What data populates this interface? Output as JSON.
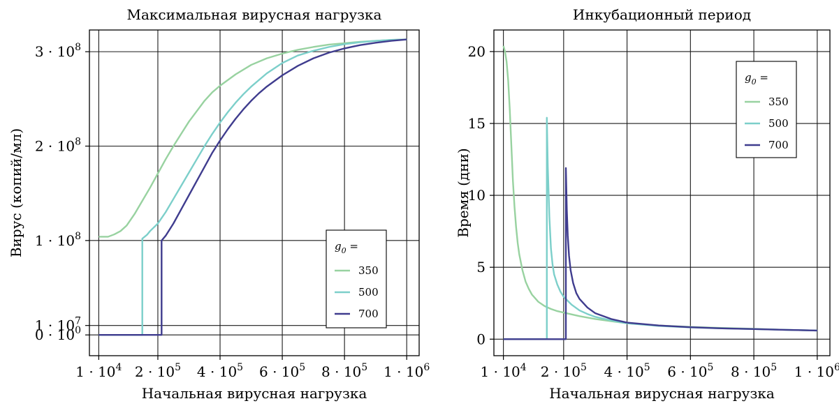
{
  "chart_data": [
    {
      "type": "line",
      "title": "Максимальная вирусная нагрузка",
      "xlabel": "Начальная вирусная нагрузка",
      "ylabel": "Вирус (копий/мл)",
      "xlim": [
        -20000,
        1040000
      ],
      "ylim": [
        -22000000,
        323000000
      ],
      "grid": true,
      "x_ticks": [
        {
          "value": 10000,
          "base": "1 · 10",
          "exp": "4"
        },
        {
          "value": 200000,
          "base": "2 · 10",
          "exp": "5"
        },
        {
          "value": 400000,
          "base": "4 · 10",
          "exp": "5"
        },
        {
          "value": 600000,
          "base": "6 · 10",
          "exp": "5"
        },
        {
          "value": 800000,
          "base": "8 · 10",
          "exp": "5"
        },
        {
          "value": 1000000,
          "base": "1 · 10",
          "exp": "6"
        }
      ],
      "y_ticks": [
        {
          "value": 0,
          "base": "0 · 10",
          "exp": "0"
        },
        {
          "value": 10000000,
          "base": "1 · 10",
          "exp": "7"
        },
        {
          "value": 100000000,
          "base": "1 · 10",
          "exp": "8"
        },
        {
          "value": 200000000,
          "base": "2 · 10",
          "exp": "8"
        },
        {
          "value": 300000000,
          "base": "3 · 10",
          "exp": "8"
        }
      ],
      "legend": {
        "title_base": "g",
        "title_sub": "0",
        "title_suffix": " =",
        "placement": "bottom-right"
      },
      "series": [
        {
          "name": "350",
          "color": "#98d2a0",
          "points": [
            [
              10000,
              104000000
            ],
            [
              40000,
              104000000
            ],
            [
              60000,
              106500000
            ],
            [
              80000,
              110000000
            ],
            [
              100000,
              116000000
            ],
            [
              125000,
              128000000
            ],
            [
              150000,
              142000000
            ],
            [
              175000,
              156000000
            ],
            [
              200000,
              171000000
            ],
            [
              225000,
              186000000
            ],
            [
              250000,
              200000000
            ],
            [
              275000,
              213000000
            ],
            [
              300000,
              226000000
            ],
            [
              325000,
              237000000
            ],
            [
              350000,
              248000000
            ],
            [
              375000,
              257000000
            ],
            [
              400000,
              264000000
            ],
            [
              450000,
              276000000
            ],
            [
              500000,
              286000000
            ],
            [
              550000,
              293000000
            ],
            [
              600000,
              298000000
            ],
            [
              650000,
              302000000
            ],
            [
              700000,
              305000000
            ],
            [
              750000,
              307500000
            ],
            [
              800000,
              309000000
            ],
            [
              850000,
              310500000
            ],
            [
              900000,
              311500000
            ],
            [
              950000,
              312500000
            ],
            [
              1000000,
              313000000
            ]
          ]
        },
        {
          "name": "500",
          "color": "#7ccfca",
          "points": [
            [
              10000,
              0
            ],
            [
              150000,
              0
            ],
            [
              150000,
              102000000
            ],
            [
              165000,
              106000000
            ],
            [
              175000,
              110000000
            ],
            [
              200000,
              118000000
            ],
            [
              225000,
              130000000
            ],
            [
              250000,
              144000000
            ],
            [
              275000,
              158000000
            ],
            [
              300000,
              172000000
            ],
            [
              325000,
              186000000
            ],
            [
              350000,
              200000000
            ],
            [
              375000,
              213000000
            ],
            [
              400000,
              225000000
            ],
            [
              425000,
              236000000
            ],
            [
              450000,
              246000000
            ],
            [
              475000,
              255000000
            ],
            [
              500000,
              263000000
            ],
            [
              550000,
              277000000
            ],
            [
              600000,
              288000000
            ],
            [
              650000,
              296000000
            ],
            [
              700000,
              301000000
            ],
            [
              750000,
              305000000
            ],
            [
              800000,
              308000000
            ],
            [
              850000,
              310000000
            ],
            [
              900000,
              311500000
            ],
            [
              950000,
              312500000
            ],
            [
              1000000,
              313000000
            ]
          ]
        },
        {
          "name": "700",
          "color": "#3f3c8e",
          "points": [
            [
              10000,
              0
            ],
            [
              212000,
              0
            ],
            [
              212000,
              100000000
            ],
            [
              225000,
              105000000
            ],
            [
              250000,
              118000000
            ],
            [
              275000,
              133000000
            ],
            [
              300000,
              148000000
            ],
            [
              325000,
              163000000
            ],
            [
              350000,
              178000000
            ],
            [
              375000,
              193000000
            ],
            [
              400000,
              206000000
            ],
            [
              425000,
              218000000
            ],
            [
              450000,
              229000000
            ],
            [
              475000,
              239000000
            ],
            [
              500000,
              248000000
            ],
            [
              525000,
              256000000
            ],
            [
              550000,
              263000000
            ],
            [
              600000,
              275000000
            ],
            [
              650000,
              285000000
            ],
            [
              700000,
              293000000
            ],
            [
              750000,
              299000000
            ],
            [
              800000,
              303500000
            ],
            [
              850000,
              307000000
            ],
            [
              900000,
              309500000
            ],
            [
              950000,
              311500000
            ],
            [
              1000000,
              313000000
            ]
          ]
        }
      ]
    },
    {
      "type": "line",
      "title": "Инкубационный период",
      "xlabel": "Начальная вирусная нагрузка",
      "ylabel": "Время (дни)",
      "xlim": [
        -20000,
        1040000
      ],
      "ylim": [
        -1.15,
        21.5
      ],
      "grid": true,
      "x_ticks": [
        {
          "value": 10000,
          "base": "1 · 10",
          "exp": "4"
        },
        {
          "value": 200000,
          "base": "2 · 10",
          "exp": "5"
        },
        {
          "value": 400000,
          "base": "4 · 10",
          "exp": "5"
        },
        {
          "value": 600000,
          "base": "6 · 10",
          "exp": "5"
        },
        {
          "value": 800000,
          "base": "8 · 10",
          "exp": "5"
        },
        {
          "value": 1000000,
          "base": "1 · 10",
          "exp": "6"
        }
      ],
      "y_ticks": [
        {
          "value": 0,
          "label": "0"
        },
        {
          "value": 5,
          "label": "5"
        },
        {
          "value": 10,
          "label": "10"
        },
        {
          "value": 15,
          "label": "15"
        },
        {
          "value": 20,
          "label": "20"
        }
      ],
      "legend": {
        "title_base": "g",
        "title_sub": "0",
        "title_suffix": " =",
        "placement": "top-right"
      },
      "series": [
        {
          "name": "350",
          "color": "#98d2a0",
          "points": [
            [
              10000,
              20.4
            ],
            [
              15000,
              20.0
            ],
            [
              20000,
              19.3
            ],
            [
              25000,
              18.0
            ],
            [
              30000,
              16.0
            ],
            [
              35000,
              13.5
            ],
            [
              40000,
              11.0
            ],
            [
              45000,
              9.2
            ],
            [
              50000,
              7.8
            ],
            [
              55000,
              6.7
            ],
            [
              60000,
              5.9
            ],
            [
              70000,
              4.8
            ],
            [
              80000,
              4.0
            ],
            [
              90000,
              3.5
            ],
            [
              100000,
              3.1
            ],
            [
              120000,
              2.6
            ],
            [
              140000,
              2.3
            ],
            [
              160000,
              2.1
            ],
            [
              180000,
              1.95
            ],
            [
              200000,
              1.85
            ],
            [
              250000,
              1.6
            ],
            [
              300000,
              1.4
            ],
            [
              350000,
              1.25
            ],
            [
              400000,
              1.1
            ],
            [
              500000,
              0.95
            ],
            [
              600000,
              0.85
            ],
            [
              700000,
              0.78
            ],
            [
              800000,
              0.72
            ],
            [
              900000,
              0.65
            ],
            [
              1000000,
              0.6
            ]
          ]
        },
        {
          "name": "500",
          "color": "#7ccfca",
          "points": [
            [
              10000,
              0
            ],
            [
              147000,
              0
            ],
            [
              147000,
              15.4
            ],
            [
              150000,
              12.0
            ],
            [
              155000,
              8.5
            ],
            [
              160000,
              6.3
            ],
            [
              165000,
              5.2
            ],
            [
              170000,
              4.5
            ],
            [
              180000,
              3.8
            ],
            [
              190000,
              3.3
            ],
            [
              200000,
              2.95
            ],
            [
              225000,
              2.4
            ],
            [
              250000,
              2.0
            ],
            [
              275000,
              1.75
            ],
            [
              300000,
              1.55
            ],
            [
              350000,
              1.3
            ],
            [
              400000,
              1.1
            ],
            [
              500000,
              0.92
            ],
            [
              600000,
              0.82
            ],
            [
              700000,
              0.75
            ],
            [
              800000,
              0.7
            ],
            [
              900000,
              0.65
            ],
            [
              1000000,
              0.6
            ]
          ]
        },
        {
          "name": "700",
          "color": "#3f3c8e",
          "points": [
            [
              10000,
              0
            ],
            [
              207000,
              0
            ],
            [
              207000,
              11.9
            ],
            [
              210000,
              9.0
            ],
            [
              213000,
              7.2
            ],
            [
              217000,
              5.8
            ],
            [
              222000,
              4.8
            ],
            [
              230000,
              3.9
            ],
            [
              240000,
              3.2
            ],
            [
              250000,
              2.8
            ],
            [
              275000,
              2.2
            ],
            [
              300000,
              1.8
            ],
            [
              350000,
              1.4
            ],
            [
              400000,
              1.15
            ],
            [
              500000,
              0.95
            ],
            [
              600000,
              0.83
            ],
            [
              700000,
              0.75
            ],
            [
              800000,
              0.7
            ],
            [
              900000,
              0.65
            ],
            [
              1000000,
              0.6
            ]
          ]
        }
      ]
    }
  ]
}
